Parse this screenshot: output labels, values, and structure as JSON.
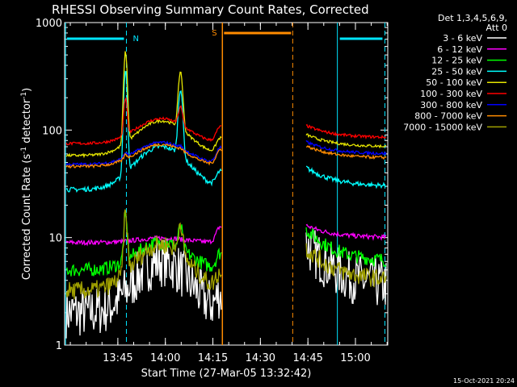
{
  "chart_data": {
    "type": "line",
    "title": "RHESSI Observing Summary Count Rates, Corrected",
    "xlabel": "Start Time (27-Mar-05 13:32:42)",
    "ylabel_main": "Corrected Count Rate (s",
    "ylabel_sup1": "-1",
    "ylabel_mid": " detector",
    "ylabel_sup2": "-1",
    "ylabel_end": ")",
    "y_scale": "log",
    "ylim": [
      1,
      1000
    ],
    "xlim_minutes": [
      13.47,
      15.17
    ],
    "x_ticks": [
      {
        "label": "13:45",
        "minutes": 13.75
      },
      {
        "label": "14:00",
        "minutes": 14.0
      },
      {
        "label": "14:15",
        "minutes": 14.25
      },
      {
        "label": "14:30",
        "minutes": 14.5
      },
      {
        "label": "14:45",
        "minutes": 14.75
      },
      {
        "label": "15:00",
        "minutes": 15.0
      }
    ],
    "y_ticks": [
      {
        "label": "1",
        "value": 1
      },
      {
        "label": "10",
        "value": 10
      },
      {
        "label": "100",
        "value": 100
      },
      {
        "label": "1000",
        "value": 1000
      }
    ],
    "legend_header": [
      "Det 1,3,4,5,6,9,",
      "Att 0"
    ],
    "legend_position": "right",
    "timestamp": "15-Oct-2021 20:24",
    "flag_labels": {
      "night": "N",
      "saa": "S"
    },
    "flags": {
      "night_bar_color": "#00e5ff",
      "saa_bar_color": "#ff8c00"
    },
    "series": [
      {
        "name": "3 - 6 keV",
        "color": "#ffffff"
      },
      {
        "name": "6 - 12 keV",
        "color": "#ff00ff"
      },
      {
        "name": "12 - 25 keV",
        "color": "#00ff00"
      },
      {
        "name": "25 - 50 keV",
        "color": "#00ffff"
      },
      {
        "name": "50 - 100 keV",
        "color": "#e6e600"
      },
      {
        "name": "100 - 300 keV",
        "color": "#ff0000"
      },
      {
        "name": "300 - 800 keV",
        "color": "#0000ff"
      },
      {
        "name": "800 - 7000 keV",
        "color": "#ff8c00"
      },
      {
        "name": "7000 - 15000 keV",
        "color": "#a0a000"
      }
    ]
  }
}
